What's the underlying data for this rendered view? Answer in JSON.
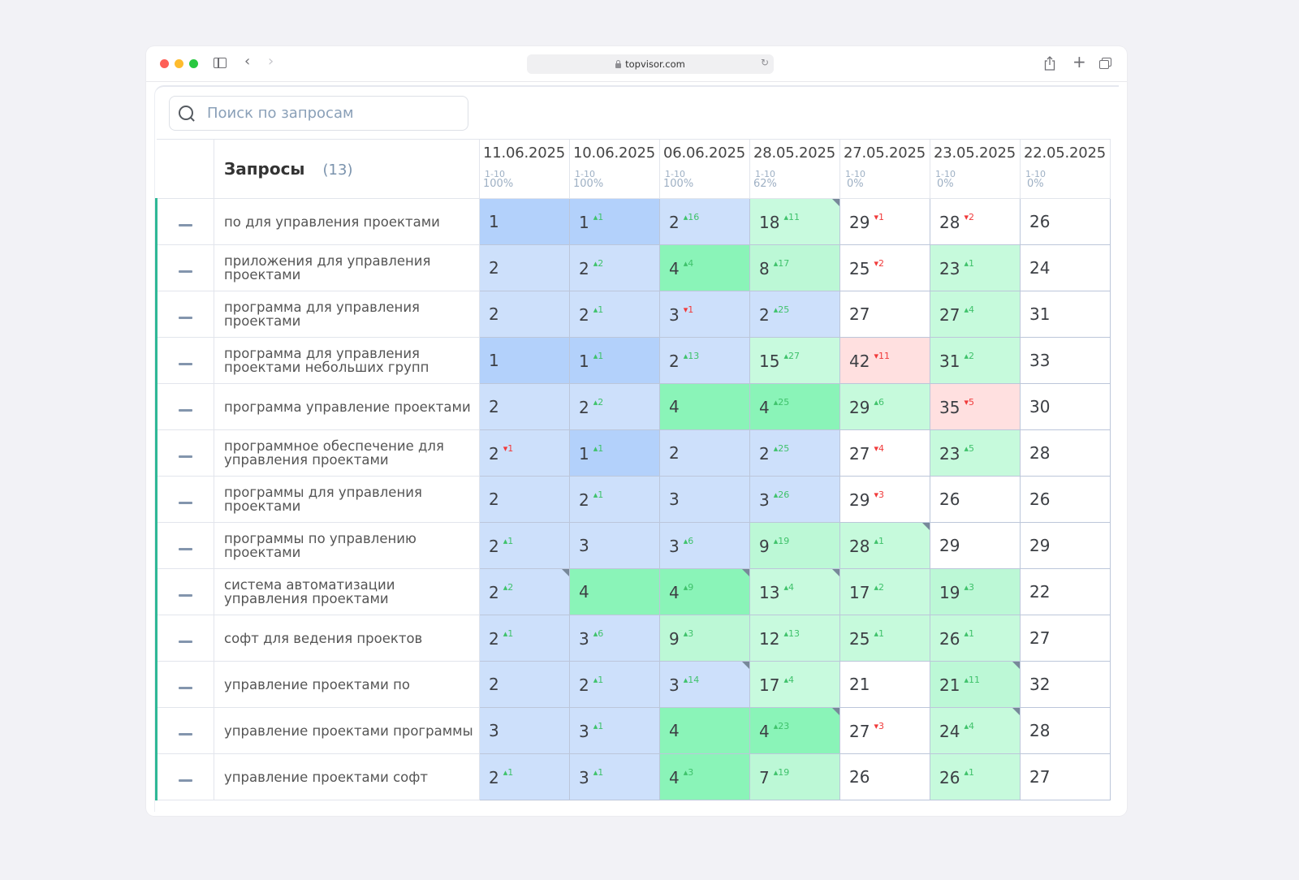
{
  "browser": {
    "url": "topvisor.com",
    "traffic_lights": {
      "close": "#fe5f57",
      "minimize": "#febc2e",
      "maximize": "#28c840"
    },
    "icons": [
      "sidebar-icon",
      "back-icon",
      "forward-icon",
      "lock-icon",
      "reload-icon",
      "share-icon",
      "new-tab-icon",
      "tabs-overview-icon"
    ]
  },
  "search": {
    "placeholder": "Поиск по запросам",
    "value": ""
  },
  "table": {
    "title": "Запросы",
    "count": "(13)",
    "columns": [
      {
        "date": "11.06.2025",
        "range": "1-10",
        "percent": "100%"
      },
      {
        "date": "10.06.2025",
        "range": "1-10",
        "percent": "100%"
      },
      {
        "date": "06.06.2025",
        "range": "1-10",
        "percent": "100%"
      },
      {
        "date": "28.05.2025",
        "range": "1-10",
        "percent": "62%"
      },
      {
        "date": "27.05.2025",
        "range": "1-10",
        "percent": "0%"
      },
      {
        "date": "23.05.2025",
        "range": "1-10",
        "percent": "0%"
      },
      {
        "date": "22.05.2025",
        "range": "1-10",
        "percent": "0%"
      }
    ],
    "rows": [
      {
        "query": "по для управления проектами",
        "cells": [
          {
            "pos": "1",
            "delta": "",
            "dir": "",
            "tone": "top1"
          },
          {
            "pos": "1",
            "delta": "1",
            "dir": "up",
            "tone": "top1"
          },
          {
            "pos": "2",
            "delta": "16",
            "dir": "up",
            "tone": "top3"
          },
          {
            "pos": "18",
            "delta": "11",
            "dir": "up",
            "tone": "top20",
            "corner": true
          },
          {
            "pos": "29",
            "delta": "1",
            "dir": "down",
            "tone": "none"
          },
          {
            "pos": "28",
            "delta": "2",
            "dir": "down",
            "tone": "none"
          },
          {
            "pos": "26",
            "delta": "",
            "dir": "",
            "tone": "none"
          }
        ]
      },
      {
        "query": "приложения для управления проектами",
        "cells": [
          {
            "pos": "2",
            "delta": "",
            "dir": "",
            "tone": "top3"
          },
          {
            "pos": "2",
            "delta": "2",
            "dir": "up",
            "tone": "top3"
          },
          {
            "pos": "4",
            "delta": "4",
            "dir": "up",
            "tone": "top5"
          },
          {
            "pos": "8",
            "delta": "17",
            "dir": "up",
            "tone": "top10"
          },
          {
            "pos": "25",
            "delta": "2",
            "dir": "down",
            "tone": "none"
          },
          {
            "pos": "23",
            "delta": "1",
            "dir": "up",
            "tone": "up"
          },
          {
            "pos": "24",
            "delta": "",
            "dir": "",
            "tone": "none"
          }
        ]
      },
      {
        "query": "программа для управления проектами",
        "cells": [
          {
            "pos": "2",
            "delta": "",
            "dir": "",
            "tone": "top3"
          },
          {
            "pos": "2",
            "delta": "1",
            "dir": "up",
            "tone": "top3"
          },
          {
            "pos": "3",
            "delta": "1",
            "dir": "down",
            "tone": "top3"
          },
          {
            "pos": "2",
            "delta": "25",
            "dir": "up",
            "tone": "top3"
          },
          {
            "pos": "27",
            "delta": "",
            "dir": "",
            "tone": "none"
          },
          {
            "pos": "27",
            "delta": "4",
            "dir": "up",
            "tone": "up"
          },
          {
            "pos": "31",
            "delta": "",
            "dir": "",
            "tone": "none"
          }
        ]
      },
      {
        "query": "программа для управления проектами небольших групп",
        "cells": [
          {
            "pos": "1",
            "delta": "",
            "dir": "",
            "tone": "top1"
          },
          {
            "pos": "1",
            "delta": "1",
            "dir": "up",
            "tone": "top1"
          },
          {
            "pos": "2",
            "delta": "13",
            "dir": "up",
            "tone": "top3"
          },
          {
            "pos": "15",
            "delta": "27",
            "dir": "up",
            "tone": "top20"
          },
          {
            "pos": "42",
            "delta": "11",
            "dir": "down",
            "tone": "drop"
          },
          {
            "pos": "31",
            "delta": "2",
            "dir": "up",
            "tone": "up"
          },
          {
            "pos": "33",
            "delta": "",
            "dir": "",
            "tone": "none"
          }
        ]
      },
      {
        "query": "программа управление проектами",
        "cells": [
          {
            "pos": "2",
            "delta": "",
            "dir": "",
            "tone": "top3"
          },
          {
            "pos": "2",
            "delta": "2",
            "dir": "up",
            "tone": "top3"
          },
          {
            "pos": "4",
            "delta": "",
            "dir": "",
            "tone": "top5"
          },
          {
            "pos": "4",
            "delta": "25",
            "dir": "up",
            "tone": "top5"
          },
          {
            "pos": "29",
            "delta": "6",
            "dir": "up",
            "tone": "up"
          },
          {
            "pos": "35",
            "delta": "5",
            "dir": "down",
            "tone": "drop"
          },
          {
            "pos": "30",
            "delta": "",
            "dir": "",
            "tone": "none"
          }
        ]
      },
      {
        "query": "программное обеспечение для управления проектами",
        "cells": [
          {
            "pos": "2",
            "delta": "1",
            "dir": "down",
            "tone": "top3"
          },
          {
            "pos": "1",
            "delta": "1",
            "dir": "up",
            "tone": "top1"
          },
          {
            "pos": "2",
            "delta": "",
            "dir": "",
            "tone": "top3"
          },
          {
            "pos": "2",
            "delta": "25",
            "dir": "up",
            "tone": "top3"
          },
          {
            "pos": "27",
            "delta": "4",
            "dir": "down",
            "tone": "none"
          },
          {
            "pos": "23",
            "delta": "5",
            "dir": "up",
            "tone": "up"
          },
          {
            "pos": "28",
            "delta": "",
            "dir": "",
            "tone": "none"
          }
        ]
      },
      {
        "query": "программы для управления проектами",
        "cells": [
          {
            "pos": "2",
            "delta": "",
            "dir": "",
            "tone": "top3"
          },
          {
            "pos": "2",
            "delta": "1",
            "dir": "up",
            "tone": "top3"
          },
          {
            "pos": "3",
            "delta": "",
            "dir": "",
            "tone": "top3"
          },
          {
            "pos": "3",
            "delta": "26",
            "dir": "up",
            "tone": "top3"
          },
          {
            "pos": "29",
            "delta": "3",
            "dir": "down",
            "tone": "none"
          },
          {
            "pos": "26",
            "delta": "",
            "dir": "",
            "tone": "none"
          },
          {
            "pos": "26",
            "delta": "",
            "dir": "",
            "tone": "none"
          }
        ]
      },
      {
        "query": "программы по управлению проектами",
        "cells": [
          {
            "pos": "2",
            "delta": "1",
            "dir": "up",
            "tone": "top3"
          },
          {
            "pos": "3",
            "delta": "",
            "dir": "",
            "tone": "top3"
          },
          {
            "pos": "3",
            "delta": "6",
            "dir": "up",
            "tone": "top3"
          },
          {
            "pos": "9",
            "delta": "19",
            "dir": "up",
            "tone": "top10"
          },
          {
            "pos": "28",
            "delta": "1",
            "dir": "up",
            "tone": "up",
            "corner": true
          },
          {
            "pos": "29",
            "delta": "",
            "dir": "",
            "tone": "none"
          },
          {
            "pos": "29",
            "delta": "",
            "dir": "",
            "tone": "none"
          }
        ]
      },
      {
        "query": "система автоматизации управления проектами",
        "cells": [
          {
            "pos": "2",
            "delta": "2",
            "dir": "up",
            "tone": "top3",
            "corner": true
          },
          {
            "pos": "4",
            "delta": "",
            "dir": "",
            "tone": "top5"
          },
          {
            "pos": "4",
            "delta": "9",
            "dir": "up",
            "tone": "top5",
            "corner": true
          },
          {
            "pos": "13",
            "delta": "4",
            "dir": "up",
            "tone": "top20",
            "corner": true
          },
          {
            "pos": "17",
            "delta": "2",
            "dir": "up",
            "tone": "top20"
          },
          {
            "pos": "19",
            "delta": "3",
            "dir": "up",
            "tone": "top10"
          },
          {
            "pos": "22",
            "delta": "",
            "dir": "",
            "tone": "none"
          }
        ]
      },
      {
        "query": "софт для ведения проектов",
        "cells": [
          {
            "pos": "2",
            "delta": "1",
            "dir": "up",
            "tone": "top3"
          },
          {
            "pos": "3",
            "delta": "6",
            "dir": "up",
            "tone": "top3"
          },
          {
            "pos": "9",
            "delta": "3",
            "dir": "up",
            "tone": "top10"
          },
          {
            "pos": "12",
            "delta": "13",
            "dir": "up",
            "tone": "top20"
          },
          {
            "pos": "25",
            "delta": "1",
            "dir": "up",
            "tone": "up"
          },
          {
            "pos": "26",
            "delta": "1",
            "dir": "up",
            "tone": "up"
          },
          {
            "pos": "27",
            "delta": "",
            "dir": "",
            "tone": "none"
          }
        ]
      },
      {
        "query": "управление проектами по",
        "cells": [
          {
            "pos": "2",
            "delta": "",
            "dir": "",
            "tone": "top3"
          },
          {
            "pos": "2",
            "delta": "1",
            "dir": "up",
            "tone": "top3"
          },
          {
            "pos": "3",
            "delta": "14",
            "dir": "up",
            "tone": "top3",
            "corner": true
          },
          {
            "pos": "17",
            "delta": "4",
            "dir": "up",
            "tone": "top20"
          },
          {
            "pos": "21",
            "delta": "",
            "dir": "",
            "tone": "none"
          },
          {
            "pos": "21",
            "delta": "11",
            "dir": "up",
            "tone": "top10",
            "corner": true
          },
          {
            "pos": "32",
            "delta": "",
            "dir": "",
            "tone": "none"
          }
        ]
      },
      {
        "query": "управление проектами программы",
        "cells": [
          {
            "pos": "3",
            "delta": "",
            "dir": "",
            "tone": "top3"
          },
          {
            "pos": "3",
            "delta": "1",
            "dir": "up",
            "tone": "top3"
          },
          {
            "pos": "4",
            "delta": "",
            "dir": "",
            "tone": "top5"
          },
          {
            "pos": "4",
            "delta": "23",
            "dir": "up",
            "tone": "top5",
            "corner": true
          },
          {
            "pos": "27",
            "delta": "3",
            "dir": "down",
            "tone": "none"
          },
          {
            "pos": "24",
            "delta": "4",
            "dir": "up",
            "tone": "up",
            "corner": true
          },
          {
            "pos": "28",
            "delta": "",
            "dir": "",
            "tone": "none"
          }
        ]
      },
      {
        "query": "управление проектами софт",
        "cells": [
          {
            "pos": "2",
            "delta": "1",
            "dir": "up",
            "tone": "top3"
          },
          {
            "pos": "3",
            "delta": "1",
            "dir": "up",
            "tone": "top3"
          },
          {
            "pos": "4",
            "delta": "3",
            "dir": "up",
            "tone": "top5"
          },
          {
            "pos": "7",
            "delta": "19",
            "dir": "up",
            "tone": "top10"
          },
          {
            "pos": "26",
            "delta": "",
            "dir": "",
            "tone": "none"
          },
          {
            "pos": "26",
            "delta": "1",
            "dir": "up",
            "tone": "up"
          },
          {
            "pos": "27",
            "delta": "",
            "dir": "",
            "tone": "none"
          }
        ]
      }
    ]
  },
  "colors": {
    "accent_bar": "#2fb896",
    "up": "#3fc26b",
    "down": "#f03a3a",
    "top1": "#b3d1fb",
    "top3": "#cde0fb",
    "top5": "#8af4b8",
    "top10": "#bcf8d6",
    "top20": "#c8fade",
    "drop": "#ffe0e0"
  }
}
